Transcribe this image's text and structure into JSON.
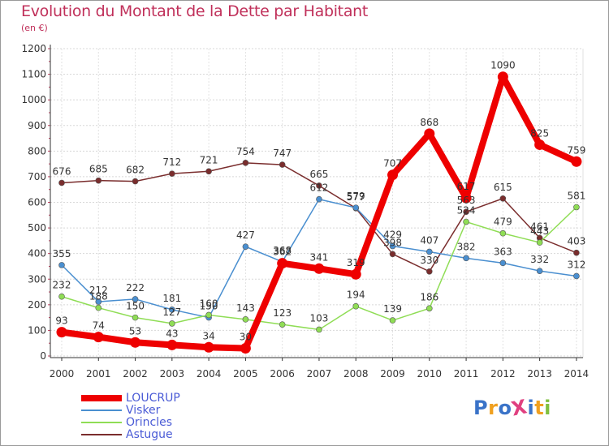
{
  "title": "Evolution du Montant de la Dette par Habitant",
  "subtitle": "(en €)",
  "logo_text": "ProXiti",
  "chart_data": {
    "type": "line",
    "x": [
      "2000",
      "2001",
      "2002",
      "2003",
      "2004",
      "2005",
      "2006",
      "2007",
      "2008",
      "2009",
      "2010",
      "2011",
      "2012",
      "2013",
      "2014"
    ],
    "yticks": [
      "0",
      "100",
      "200",
      "300",
      "400",
      "500",
      "600",
      "700",
      "800",
      "900",
      "1000",
      "1100",
      "1200"
    ],
    "ylim": [
      0,
      1200
    ],
    "grid": true,
    "legend_position": "bottom-left",
    "series": [
      {
        "name": "LOUCRUP",
        "color": "#ee0000",
        "values": [
          93,
          74,
          53,
          43,
          34,
          30,
          362,
          341,
          319,
          707,
          868,
          617,
          1090,
          825,
          759
        ],
        "labels": [
          "93",
          "74",
          "53",
          "43",
          "34",
          "30",
          "362",
          "341",
          "319",
          "707",
          "868",
          "617",
          "1090",
          "825",
          "759"
        ]
      },
      {
        "name": "Visker",
        "color": "#4a8fd0",
        "values": [
          355,
          212,
          222,
          181,
          150,
          427,
          368,
          612,
          579,
          429,
          407,
          382,
          363,
          332,
          312
        ],
        "labels": [
          "355",
          "212",
          "222",
          "181",
          "150",
          "427",
          "368",
          "612",
          "579",
          "429",
          "407",
          "382",
          "363",
          "332",
          "312"
        ]
      },
      {
        "name": "Orincles",
        "color": "#8fdd55",
        "values": [
          232,
          188,
          150,
          127,
          160,
          143,
          123,
          103,
          194,
          139,
          186,
          524,
          479,
          443,
          581
        ],
        "labels": [
          "232",
          "188",
          "150",
          "127",
          "160",
          "143",
          "123",
          "103",
          "194",
          "139",
          "186",
          "524",
          "479",
          "443",
          "581"
        ]
      },
      {
        "name": "Astugue",
        "color": "#7a2d2d",
        "values": [
          676,
          685,
          682,
          712,
          721,
          754,
          747,
          665,
          577,
          398,
          330,
          563,
          615,
          461,
          403
        ],
        "labels": [
          "676",
          "685",
          "682",
          "712",
          "721",
          "754",
          "747",
          "665",
          "577",
          "398",
          "330",
          "563",
          "615",
          "461",
          "403"
        ]
      }
    ]
  }
}
